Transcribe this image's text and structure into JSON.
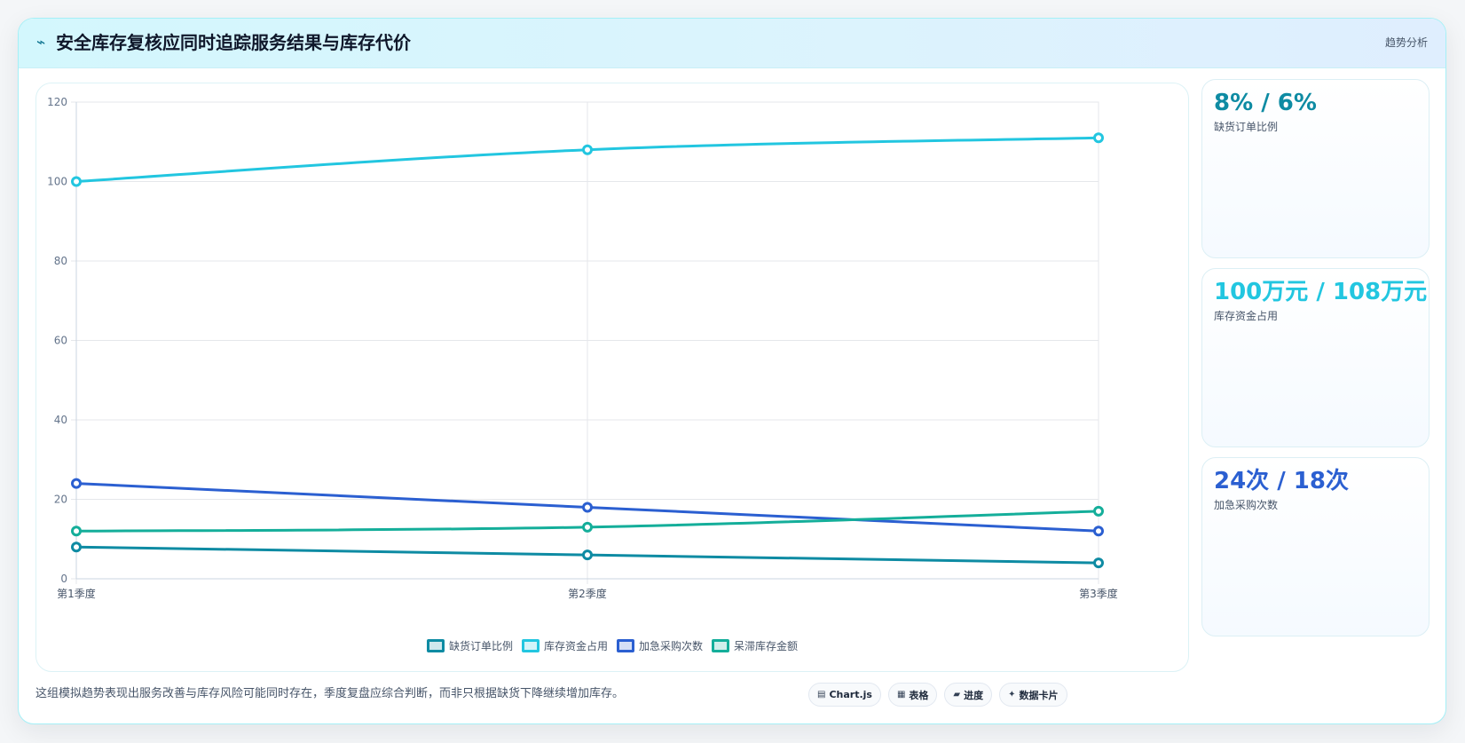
{
  "header": {
    "icon": "bolt-icon",
    "title": "安全库存复核应同时追踪服务结果与库存代价",
    "badge": "趋势分析"
  },
  "chart_data": {
    "type": "line",
    "categories": [
      "第1季度",
      "第2季度",
      "第3季度"
    ],
    "ylim": [
      0,
      120
    ],
    "yticks": [
      0,
      20,
      40,
      60,
      80,
      100,
      120
    ],
    "grid": true,
    "legend_position": "bottom",
    "series": [
      {
        "name": "缺货订单比例",
        "values": [
          8,
          6,
          4
        ],
        "color": "#0e8ba3"
      },
      {
        "name": "库存资金占用",
        "values": [
          100,
          108,
          111
        ],
        "color": "#22c6e0"
      },
      {
        "name": "加急采购次数",
        "values": [
          24,
          18,
          12
        ],
        "color": "#2b5fd1"
      },
      {
        "name": "呆滞库存金额",
        "values": [
          12,
          13,
          17
        ],
        "color": "#14ae9a"
      }
    ]
  },
  "kpis": [
    {
      "value": "8% / 6%",
      "label": "缺货订单比例",
      "color": "#0e8ba3"
    },
    {
      "value": "100万元 / 108万元",
      "label": "库存资金占用",
      "color": "#22c6e0"
    },
    {
      "value": "24次 / 18次",
      "label": "加急采购次数",
      "color": "#2b5fd1"
    }
  ],
  "note": "这组模拟趋势表现出服务改善与库存风险可能同时存在，季度复盘应综合判断，而非只根据缺货下降继续增加库存。",
  "toolbar": [
    {
      "icon": "chart-icon",
      "glyph": "▤",
      "label": "Chart.js"
    },
    {
      "icon": "table-icon",
      "glyph": "▦",
      "label": "表格"
    },
    {
      "icon": "progress-icon",
      "glyph": "▰",
      "label": "进度"
    },
    {
      "icon": "card-icon",
      "glyph": "✦",
      "label": "数据卡片"
    }
  ]
}
